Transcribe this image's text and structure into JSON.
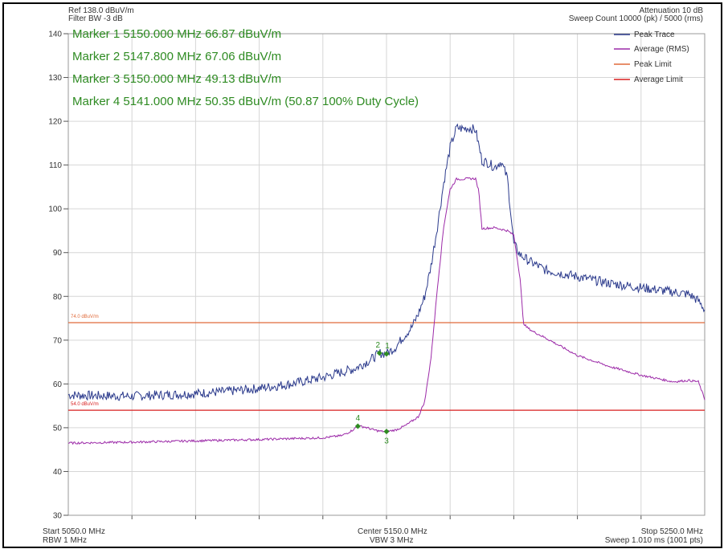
{
  "header": {
    "ref_level": "Ref 138.0 dBuV/m",
    "filter_bw": "Filter BW -3 dB",
    "attenuation": "Attenuation 10 dB",
    "sweep_count": "Sweep Count 10000 (pk) / 5000 (rms)"
  },
  "markers": [
    {
      "label": "Marker 1 5150.000 MHz 66.87 dBuV/m",
      "id": "1",
      "x": 5150.0,
      "y": 66.87,
      "trace": "peak",
      "label_pos": "above"
    },
    {
      "label": "Marker 2 5147.800 MHz 67.06 dBuV/m",
      "id": "2",
      "x": 5147.8,
      "y": 67.06,
      "trace": "peak",
      "label_pos": "above"
    },
    {
      "label": "Marker 3 5150.000 MHz 49.13 dBuV/m",
      "id": "3",
      "x": 5150.0,
      "y": 49.13,
      "trace": "rms",
      "label_pos": "below"
    },
    {
      "label": "Marker 4 5141.000 MHz 50.35 dBuV/m (50.87 100% Duty Cycle)",
      "id": "4",
      "x": 5141.0,
      "y": 50.35,
      "trace": "rms",
      "label_pos": "above"
    }
  ],
  "legend": [
    {
      "label": "Peak Trace",
      "color": "#2b3a8c"
    },
    {
      "label": "Average (RMS)",
      "color": "#9c2aa8"
    },
    {
      "label": "Peak Limit",
      "color": "#e06a3a"
    },
    {
      "label": "Average Limit",
      "color": "#d81e1e"
    }
  ],
  "limit_labels": {
    "peak": "74.0 dBuV/m",
    "average": "54.0 dBuV/m"
  },
  "footer": {
    "start": "Start 5050.0 MHz",
    "rbw": "RBW 1 MHz",
    "center": "Center 5150.0 MHz",
    "vbw": "VBW 3 MHz",
    "stop": "Stop 5250.0 MHz",
    "sweep": "Sweep 1.010 ms (1001 pts)"
  },
  "colors": {
    "peak_trace": "#2b3a8c",
    "rms_trace": "#9c2aa8",
    "peak_limit": "#e06a3a",
    "avg_limit": "#d81e1e",
    "marker": "#2e8b22",
    "grid": "#d6d6d6"
  },
  "chart_data": {
    "type": "line",
    "xlim": [
      5050,
      5250
    ],
    "ylim": [
      30,
      140
    ],
    "yticks": [
      30,
      40,
      50,
      60,
      70,
      80,
      90,
      100,
      110,
      120,
      130,
      140
    ],
    "grid": true,
    "legend_position": "top-right",
    "limits": [
      {
        "name": "Peak Limit",
        "value": 74.0
      },
      {
        "name": "Average Limit",
        "value": 54.0
      }
    ],
    "series": [
      {
        "name": "Peak Trace",
        "x": [
          5050,
          5060,
          5070,
          5080,
          5090,
          5100,
          5110,
          5120,
          5130,
          5140,
          5145,
          5147.8,
          5150,
          5153,
          5155,
          5158,
          5160,
          5162,
          5164,
          5166,
          5168,
          5170,
          5172,
          5174,
          5176,
          5178,
          5180,
          5182,
          5184,
          5186,
          5188,
          5190,
          5192,
          5195,
          5200,
          5210,
          5220,
          5230,
          5240,
          5245,
          5248,
          5250
        ],
        "y": [
          57.5,
          57.3,
          57.2,
          57.5,
          57.8,
          58.3,
          59.0,
          60.0,
          61.5,
          63.5,
          65.5,
          67.06,
          66.87,
          68.5,
          70.5,
          73.0,
          76.0,
          80.0,
          87.0,
          96.0,
          106.0,
          114.0,
          118.5,
          118.3,
          118.5,
          118.0,
          111.0,
          110.5,
          109.5,
          110.8,
          107.0,
          92.0,
          89.5,
          88.0,
          86.0,
          84.5,
          83.0,
          82.0,
          81.0,
          80.5,
          79.0,
          77.0
        ]
      },
      {
        "name": "Average (RMS)",
        "x": [
          5050,
          5070,
          5090,
          5110,
          5130,
          5136,
          5139,
          5141,
          5143,
          5146,
          5148,
          5150,
          5153,
          5156,
          5160,
          5162,
          5164,
          5166,
          5168,
          5170,
          5172,
          5174,
          5176,
          5178,
          5179,
          5180,
          5184,
          5188,
          5190,
          5192,
          5193,
          5194,
          5196,
          5200,
          5210,
          5220,
          5230,
          5240,
          5245,
          5248,
          5250
        ],
        "y": [
          46.5,
          46.7,
          47.0,
          47.3,
          47.7,
          48.2,
          49.3,
          50.35,
          50.2,
          49.5,
          49.2,
          49.13,
          49.5,
          50.5,
          52.5,
          56.0,
          66.0,
          82.0,
          96.0,
          104.5,
          106.8,
          106.8,
          106.9,
          106.9,
          104.0,
          95.5,
          95.7,
          95.0,
          94.0,
          84.0,
          74.0,
          73.0,
          72.0,
          70.5,
          66.5,
          64.0,
          62.0,
          60.5,
          60.8,
          60.5,
          56.5
        ]
      }
    ]
  }
}
